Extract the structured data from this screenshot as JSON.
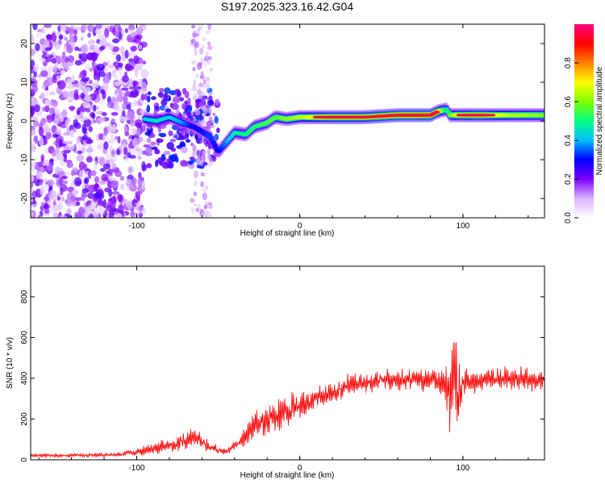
{
  "title": "S197.2025.323.16.42.G04",
  "chart_data": [
    {
      "type": "heatmap",
      "name": "spectrogram",
      "xlabel": "Height of straight line (km)",
      "ylabel": "Frequency (Hz)",
      "xlim": [
        -165,
        150
      ],
      "ylim": [
        -25,
        25
      ],
      "xticks": [
        -100,
        0,
        100
      ],
      "yticks": [
        -20,
        -10,
        0,
        10,
        20
      ],
      "colorbar": {
        "label": "Normalized spectral amplitude",
        "range": [
          0,
          1
        ],
        "ticks": [
          0.0,
          0.2,
          0.4,
          0.6,
          0.8
        ],
        "colors": [
          "#ffffff",
          "#d9b3ff",
          "#7f00ff",
          "#0000ff",
          "#00bfff",
          "#00ff80",
          "#80ff00",
          "#ffff00",
          "#ff8000",
          "#ff0000",
          "#ff0080"
        ]
      },
      "ridge": [
        {
          "x": -95,
          "f": 0.5,
          "a": 0.45
        },
        {
          "x": -88,
          "f": 0.0,
          "a": 0.5
        },
        {
          "x": -80,
          "f": 1.0,
          "a": 0.45
        },
        {
          "x": -72,
          "f": -0.5,
          "a": 0.4
        },
        {
          "x": -65,
          "f": -1.5,
          "a": 0.3
        },
        {
          "x": -55,
          "f": -4.0,
          "a": 0.35
        },
        {
          "x": -50,
          "f": -8.0,
          "a": 0.3
        },
        {
          "x": -40,
          "f": -3.0,
          "a": 0.5
        },
        {
          "x": -33,
          "f": -3.5,
          "a": 0.55
        },
        {
          "x": -28,
          "f": -1.5,
          "a": 0.55
        },
        {
          "x": -20,
          "f": -0.5,
          "a": 0.6
        },
        {
          "x": -15,
          "f": 1.0,
          "a": 0.6
        },
        {
          "x": -8,
          "f": 0.5,
          "a": 0.65
        },
        {
          "x": 0,
          "f": 1.0,
          "a": 0.7
        },
        {
          "x": 10,
          "f": 1.0,
          "a": 0.8
        },
        {
          "x": 20,
          "f": 1.0,
          "a": 0.85
        },
        {
          "x": 40,
          "f": 1.0,
          "a": 0.85
        },
        {
          "x": 60,
          "f": 1.5,
          "a": 0.9
        },
        {
          "x": 80,
          "f": 1.5,
          "a": 0.9
        },
        {
          "x": 85,
          "f": 2.5,
          "a": 0.85
        },
        {
          "x": 90,
          "f": 3.0,
          "a": 0.5
        },
        {
          "x": 92,
          "f": 1.5,
          "a": 0.6
        },
        {
          "x": 97,
          "f": 1.5,
          "a": 0.8
        },
        {
          "x": 110,
          "f": 1.5,
          "a": 0.85
        },
        {
          "x": 130,
          "f": 1.5,
          "a": 0.7
        },
        {
          "x": 150,
          "f": 1.5,
          "a": 0.65
        }
      ]
    },
    {
      "type": "line",
      "name": "snr",
      "xlabel": "Height of straight line (km)",
      "ylabel": "SNR (10 * v/v)",
      "xlim": [
        -165,
        150
      ],
      "ylim": [
        0,
        950
      ],
      "xticks": [
        -100,
        0,
        100
      ],
      "yticks": [
        0,
        200,
        400,
        600,
        800
      ],
      "color": "#ff0000",
      "envelope": [
        {
          "x": -165,
          "y": 20,
          "amp": 15
        },
        {
          "x": -110,
          "y": 25,
          "amp": 15
        },
        {
          "x": -100,
          "y": 40,
          "amp": 30
        },
        {
          "x": -80,
          "y": 70,
          "amp": 50
        },
        {
          "x": -65,
          "y": 110,
          "amp": 70
        },
        {
          "x": -55,
          "y": 60,
          "amp": 40
        },
        {
          "x": -45,
          "y": 40,
          "amp": 20
        },
        {
          "x": -38,
          "y": 80,
          "amp": 40
        },
        {
          "x": -30,
          "y": 150,
          "amp": 100
        },
        {
          "x": -20,
          "y": 200,
          "amp": 110
        },
        {
          "x": -10,
          "y": 240,
          "amp": 120
        },
        {
          "x": 0,
          "y": 260,
          "amp": 100
        },
        {
          "x": 10,
          "y": 300,
          "amp": 80
        },
        {
          "x": 20,
          "y": 330,
          "amp": 70
        },
        {
          "x": 30,
          "y": 370,
          "amp": 70
        },
        {
          "x": 50,
          "y": 390,
          "amp": 70
        },
        {
          "x": 80,
          "y": 395,
          "amp": 75
        },
        {
          "x": 88,
          "y": 380,
          "amp": 80
        },
        {
          "x": 92,
          "y": 300,
          "amp": 250
        },
        {
          "x": 95,
          "y": 500,
          "amp": 400
        },
        {
          "x": 97,
          "y": 300,
          "amp": 250
        },
        {
          "x": 100,
          "y": 380,
          "amp": 90
        },
        {
          "x": 120,
          "y": 400,
          "amp": 80
        },
        {
          "x": 150,
          "y": 390,
          "amp": 80
        }
      ]
    }
  ]
}
